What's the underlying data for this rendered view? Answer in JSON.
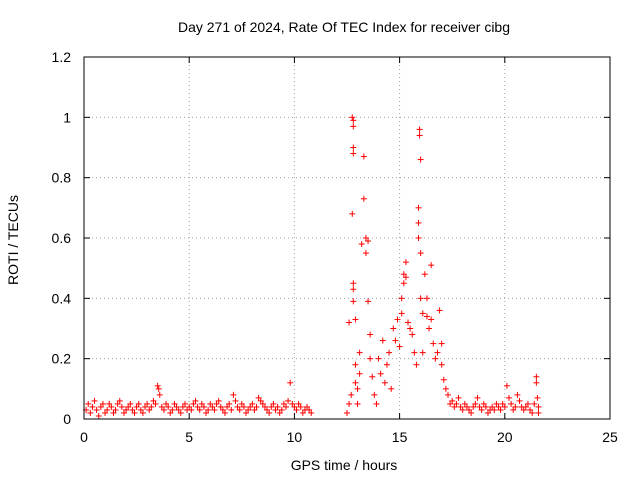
{
  "chart_data": {
    "type": "scatter",
    "title": "Day 271 of 2024, Rate Of TEC Index for receiver cibg",
    "xlabel": "GPS time / hours",
    "ylabel": "ROTI / TECUs",
    "xlim": [
      0,
      25
    ],
    "ylim": [
      0,
      1.2
    ],
    "xticks": [
      0,
      5,
      10,
      15,
      20,
      25
    ],
    "xtick_labels": [
      "0",
      "5",
      "10",
      "15",
      "20",
      "25"
    ],
    "yticks": [
      0,
      0.2,
      0.4,
      0.6,
      0.8,
      1.0,
      1.2
    ],
    "ytick_labels": [
      "0",
      "0.2",
      "0.4",
      "0.6",
      "0.8",
      "1",
      "1.2"
    ],
    "grid": true,
    "marker": "+",
    "color": "#ff0000",
    "series": [
      {
        "name": "ROTI",
        "points": [
          [
            0.1,
            0.03
          ],
          [
            0.2,
            0.05
          ],
          [
            0.3,
            0.02
          ],
          [
            0.4,
            0.04
          ],
          [
            0.5,
            0.06
          ],
          [
            0.6,
            0.03
          ],
          [
            0.7,
            0.01
          ],
          [
            0.8,
            0.04
          ],
          [
            0.9,
            0.05
          ],
          [
            1.0,
            0.02
          ],
          [
            1.1,
            0.03
          ],
          [
            1.2,
            0.05
          ],
          [
            1.3,
            0.04
          ],
          [
            1.4,
            0.02
          ],
          [
            1.5,
            0.03
          ],
          [
            1.6,
            0.05
          ],
          [
            1.7,
            0.06
          ],
          [
            1.8,
            0.04
          ],
          [
            1.9,
            0.02
          ],
          [
            2.0,
            0.03
          ],
          [
            2.1,
            0.04
          ],
          [
            2.2,
            0.05
          ],
          [
            2.3,
            0.03
          ],
          [
            2.4,
            0.02
          ],
          [
            2.5,
            0.04
          ],
          [
            2.6,
            0.05
          ],
          [
            2.7,
            0.03
          ],
          [
            2.8,
            0.02
          ],
          [
            2.9,
            0.04
          ],
          [
            3.0,
            0.05
          ],
          [
            3.1,
            0.03
          ],
          [
            3.2,
            0.04
          ],
          [
            3.3,
            0.06
          ],
          [
            3.4,
            0.05
          ],
          [
            3.5,
            0.11
          ],
          [
            3.55,
            0.1
          ],
          [
            3.6,
            0.08
          ],
          [
            3.7,
            0.04
          ],
          [
            3.8,
            0.03
          ],
          [
            3.9,
            0.05
          ],
          [
            4.0,
            0.04
          ],
          [
            4.1,
            0.02
          ],
          [
            4.2,
            0.03
          ],
          [
            4.3,
            0.05
          ],
          [
            4.4,
            0.04
          ],
          [
            4.5,
            0.03
          ],
          [
            4.6,
            0.02
          ],
          [
            4.7,
            0.04
          ],
          [
            4.8,
            0.05
          ],
          [
            4.9,
            0.03
          ],
          [
            5.0,
            0.04
          ],
          [
            5.1,
            0.03
          ],
          [
            5.2,
            0.05
          ],
          [
            5.3,
            0.06
          ],
          [
            5.4,
            0.04
          ],
          [
            5.5,
            0.03
          ],
          [
            5.6,
            0.05
          ],
          [
            5.7,
            0.04
          ],
          [
            5.8,
            0.02
          ],
          [
            5.9,
            0.03
          ],
          [
            6.0,
            0.05
          ],
          [
            6.1,
            0.04
          ],
          [
            6.2,
            0.03
          ],
          [
            6.3,
            0.05
          ],
          [
            6.4,
            0.06
          ],
          [
            6.5,
            0.04
          ],
          [
            6.6,
            0.03
          ],
          [
            6.7,
            0.02
          ],
          [
            6.8,
            0.04
          ],
          [
            6.9,
            0.05
          ],
          [
            7.0,
            0.03
          ],
          [
            7.1,
            0.08
          ],
          [
            7.2,
            0.06
          ],
          [
            7.3,
            0.04
          ],
          [
            7.4,
            0.03
          ],
          [
            7.5,
            0.05
          ],
          [
            7.6,
            0.04
          ],
          [
            7.7,
            0.02
          ],
          [
            7.8,
            0.03
          ],
          [
            7.9,
            0.04
          ],
          [
            8.0,
            0.05
          ],
          [
            8.1,
            0.03
          ],
          [
            8.2,
            0.04
          ],
          [
            8.3,
            0.07
          ],
          [
            8.4,
            0.06
          ],
          [
            8.5,
            0.05
          ],
          [
            8.6,
            0.04
          ],
          [
            8.7,
            0.03
          ],
          [
            8.8,
            0.02
          ],
          [
            8.9,
            0.04
          ],
          [
            9.0,
            0.05
          ],
          [
            9.1,
            0.03
          ],
          [
            9.2,
            0.04
          ],
          [
            9.3,
            0.02
          ],
          [
            9.4,
            0.03
          ],
          [
            9.5,
            0.05
          ],
          [
            9.6,
            0.04
          ],
          [
            9.7,
            0.06
          ],
          [
            9.8,
            0.12
          ],
          [
            9.9,
            0.05
          ],
          [
            10.0,
            0.04
          ],
          [
            10.1,
            0.03
          ],
          [
            10.2,
            0.05
          ],
          [
            10.3,
            0.04
          ],
          [
            10.4,
            0.02
          ],
          [
            10.5,
            0.03
          ],
          [
            10.6,
            0.04
          ],
          [
            10.7,
            0.03
          ],
          [
            10.8,
            0.02
          ],
          [
            12.5,
            0.02
          ],
          [
            12.6,
            0.05
          ],
          [
            12.6,
            0.32
          ],
          [
            12.7,
            0.08
          ],
          [
            12.75,
            1.0
          ],
          [
            12.8,
            0.99
          ],
          [
            12.8,
            0.97
          ],
          [
            12.8,
            0.9
          ],
          [
            12.8,
            0.88
          ],
          [
            12.75,
            0.68
          ],
          [
            12.8,
            0.45
          ],
          [
            12.8,
            0.43
          ],
          [
            12.8,
            0.39
          ],
          [
            12.9,
            0.33
          ],
          [
            12.9,
            0.18
          ],
          [
            12.9,
            0.12
          ],
          [
            13.0,
            0.1
          ],
          [
            13.0,
            0.05
          ],
          [
            13.1,
            0.22
          ],
          [
            13.1,
            0.15
          ],
          [
            13.2,
            0.58
          ],
          [
            13.3,
            0.87
          ],
          [
            13.3,
            0.73
          ],
          [
            13.4,
            0.6
          ],
          [
            13.4,
            0.55
          ],
          [
            13.5,
            0.59
          ],
          [
            13.5,
            0.39
          ],
          [
            13.6,
            0.28
          ],
          [
            13.6,
            0.2
          ],
          [
            13.7,
            0.14
          ],
          [
            13.8,
            0.08
          ],
          [
            13.9,
            0.05
          ],
          [
            14.0,
            0.2
          ],
          [
            14.1,
            0.15
          ],
          [
            14.2,
            0.26
          ],
          [
            14.3,
            0.12
          ],
          [
            14.4,
            0.18
          ],
          [
            14.5,
            0.22
          ],
          [
            14.6,
            0.1
          ],
          [
            14.7,
            0.3
          ],
          [
            14.8,
            0.26
          ],
          [
            14.9,
            0.33
          ],
          [
            15.0,
            0.24
          ],
          [
            15.1,
            0.4
          ],
          [
            15.1,
            0.35
          ],
          [
            15.2,
            0.48
          ],
          [
            15.2,
            0.45
          ],
          [
            15.3,
            0.52
          ],
          [
            15.3,
            0.47
          ],
          [
            15.4,
            0.32
          ],
          [
            15.5,
            0.3
          ],
          [
            15.6,
            0.28
          ],
          [
            15.7,
            0.22
          ],
          [
            15.8,
            0.18
          ],
          [
            15.9,
            0.7
          ],
          [
            15.9,
            0.65
          ],
          [
            15.9,
            0.6
          ],
          [
            15.95,
            0.96
          ],
          [
            15.95,
            0.94
          ],
          [
            16.0,
            0.86
          ],
          [
            16.0,
            0.55
          ],
          [
            16.0,
            0.4
          ],
          [
            16.1,
            0.35
          ],
          [
            16.1,
            0.22
          ],
          [
            16.2,
            0.48
          ],
          [
            16.3,
            0.4
          ],
          [
            16.3,
            0.34
          ],
          [
            16.4,
            0.3
          ],
          [
            16.5,
            0.51
          ],
          [
            16.5,
            0.33
          ],
          [
            16.6,
            0.25
          ],
          [
            16.7,
            0.2
          ],
          [
            16.8,
            0.22
          ],
          [
            16.9,
            0.36
          ],
          [
            17.0,
            0.25
          ],
          [
            17.0,
            0.18
          ],
          [
            17.1,
            0.13
          ],
          [
            17.2,
            0.1
          ],
          [
            17.3,
            0.08
          ],
          [
            17.4,
            0.05
          ],
          [
            17.5,
            0.06
          ],
          [
            17.6,
            0.04
          ],
          [
            17.7,
            0.05
          ],
          [
            17.8,
            0.07
          ],
          [
            17.9,
            0.04
          ],
          [
            18.0,
            0.03
          ],
          [
            18.1,
            0.05
          ],
          [
            18.2,
            0.04
          ],
          [
            18.3,
            0.03
          ],
          [
            18.4,
            0.02
          ],
          [
            18.5,
            0.04
          ],
          [
            18.6,
            0.05
          ],
          [
            18.7,
            0.07
          ],
          [
            18.8,
            0.04
          ],
          [
            18.9,
            0.03
          ],
          [
            19.0,
            0.05
          ],
          [
            19.1,
            0.04
          ],
          [
            19.2,
            0.02
          ],
          [
            19.3,
            0.03
          ],
          [
            19.4,
            0.04
          ],
          [
            19.5,
            0.03
          ],
          [
            19.6,
            0.05
          ],
          [
            19.7,
            0.04
          ],
          [
            19.8,
            0.03
          ],
          [
            19.9,
            0.05
          ],
          [
            20.0,
            0.04
          ],
          [
            20.1,
            0.11
          ],
          [
            20.2,
            0.07
          ],
          [
            20.3,
            0.05
          ],
          [
            20.4,
            0.03
          ],
          [
            20.5,
            0.04
          ],
          [
            20.6,
            0.08
          ],
          [
            20.7,
            0.06
          ],
          [
            20.8,
            0.04
          ],
          [
            20.9,
            0.03
          ],
          [
            21.0,
            0.04
          ],
          [
            21.1,
            0.05
          ],
          [
            21.2,
            0.03
          ],
          [
            21.3,
            0.02
          ],
          [
            21.4,
            0.05
          ],
          [
            21.5,
            0.14
          ],
          [
            21.5,
            0.12
          ],
          [
            21.55,
            0.07
          ],
          [
            21.6,
            0.04
          ],
          [
            21.6,
            0.02
          ]
        ]
      }
    ]
  }
}
